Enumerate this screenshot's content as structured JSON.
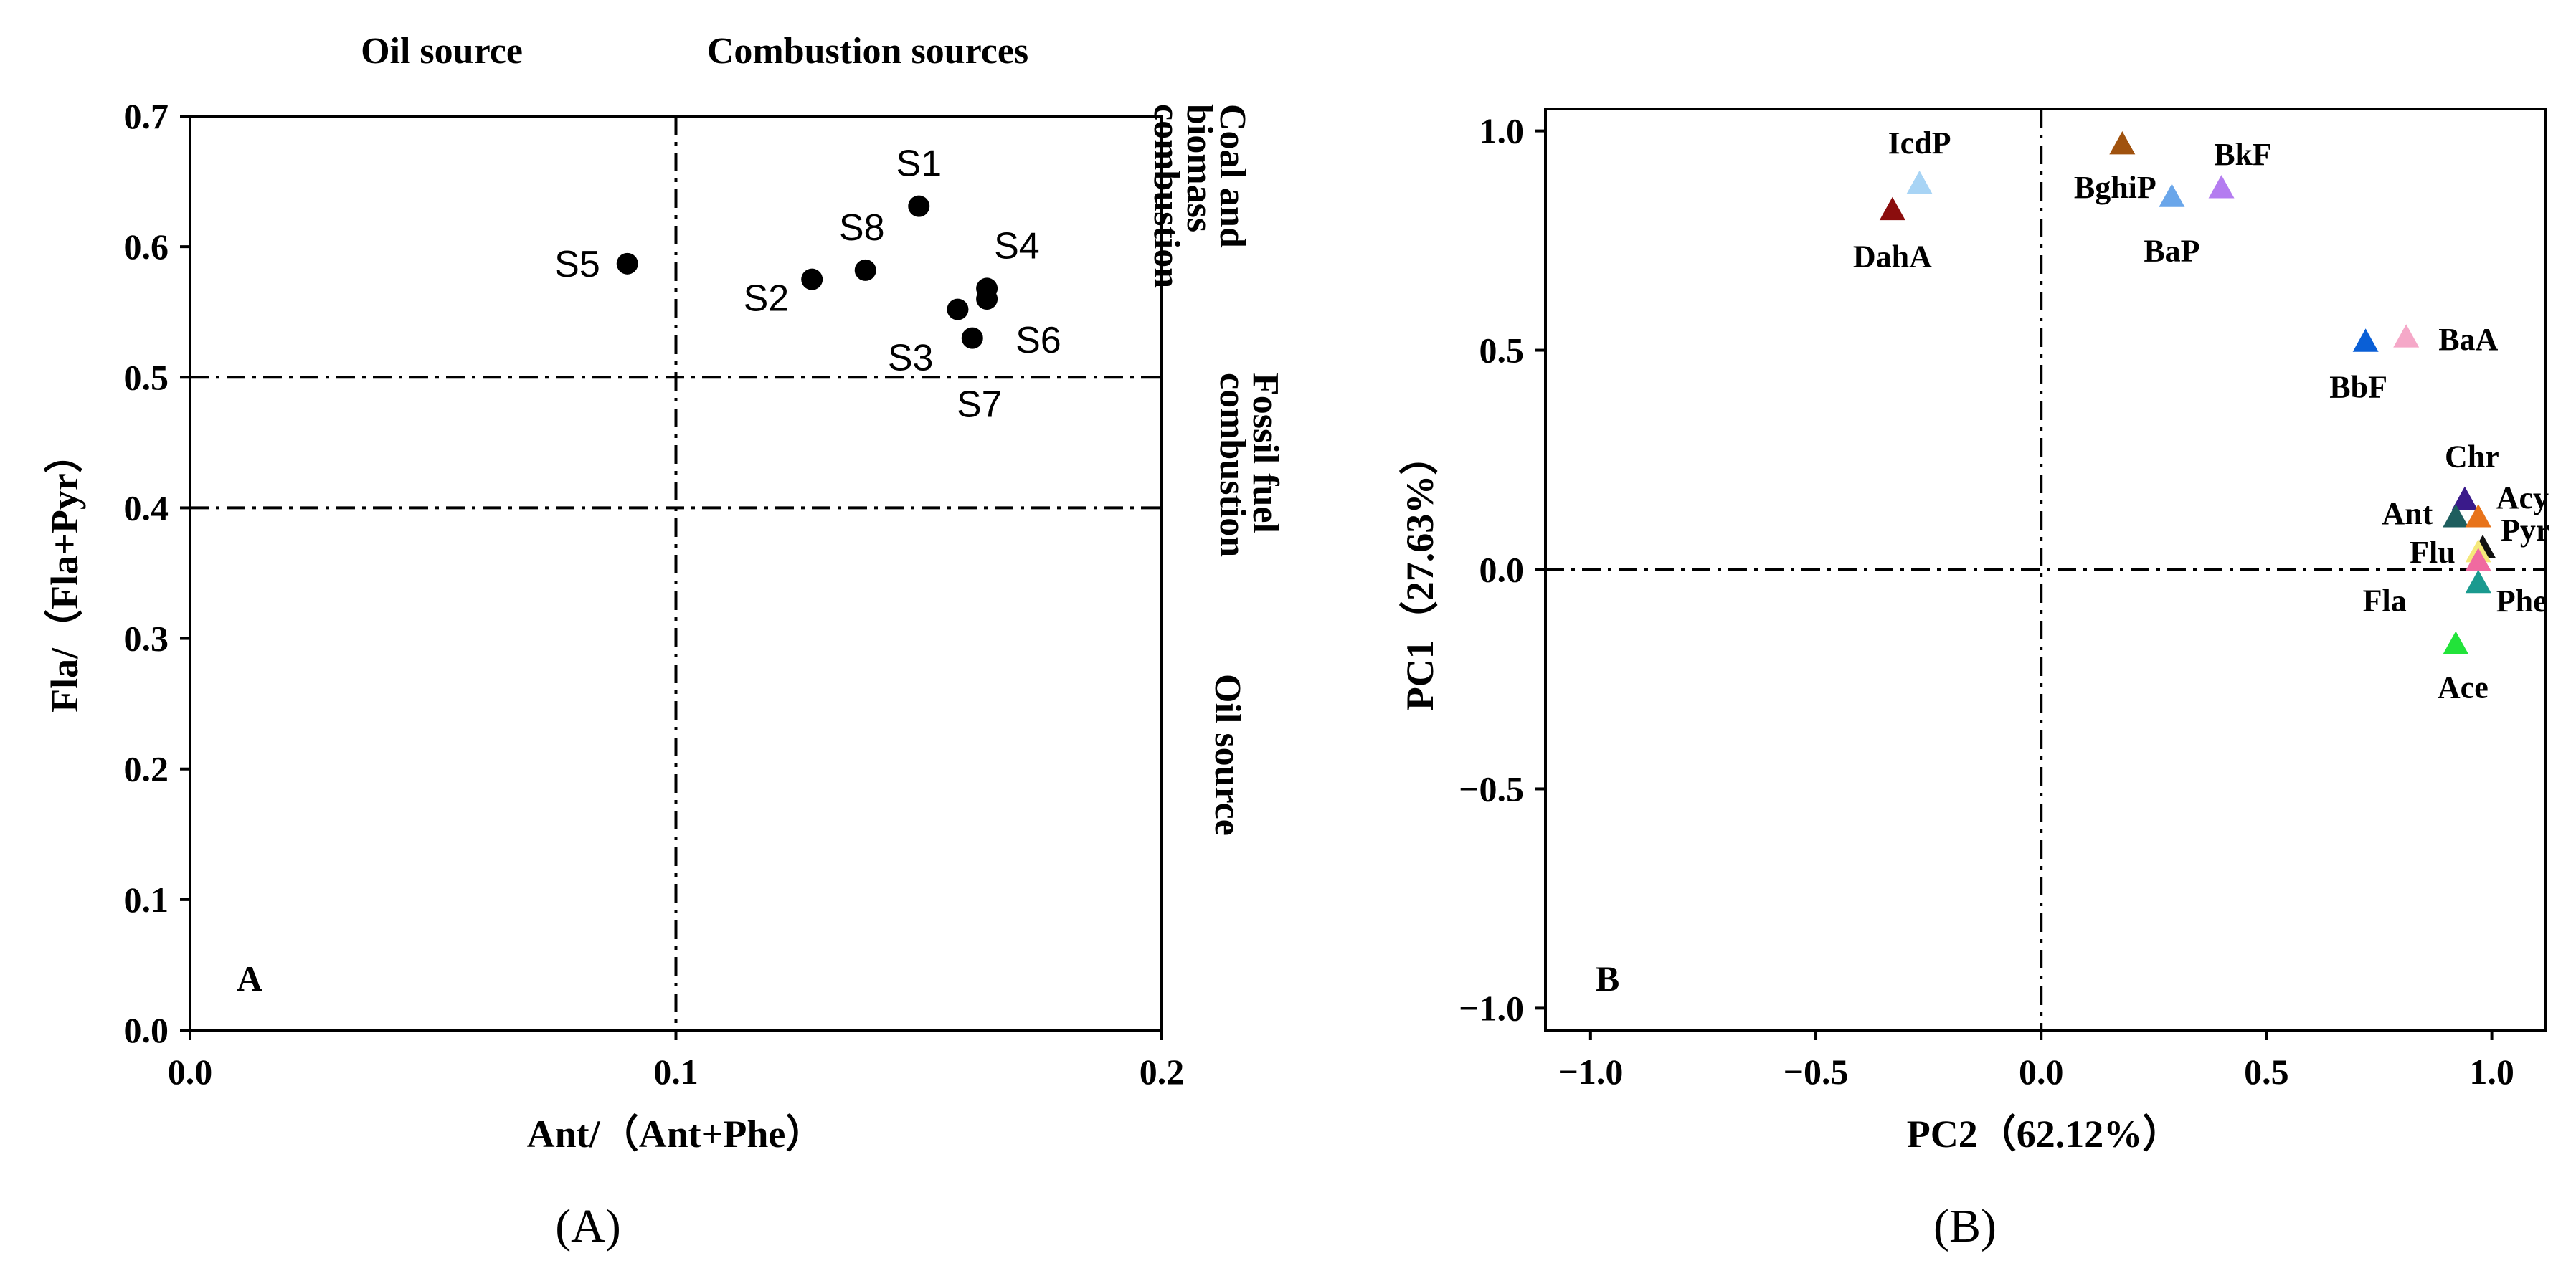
{
  "figure": {
    "caption_a": "(A)",
    "caption_b": "(B)"
  },
  "chart_data": [
    {
      "type": "scatter",
      "panel_label": "A",
      "xlabel": "Ant/（Ant+Phe）",
      "ylabel": "Fla/（Fla+Pyr）",
      "xlim": [
        0.0,
        0.2
      ],
      "ylim": [
        0.0,
        0.7
      ],
      "xticks": [
        "0.0",
        "0.1",
        "0.2"
      ],
      "yticks": [
        "0.0",
        "0.1",
        "0.2",
        "0.3",
        "0.4",
        "0.5",
        "0.6",
        "0.7"
      ],
      "top_labels": [
        "Oil source",
        "Combustion sources"
      ],
      "right_labels": [
        "Coal and biomass combustion",
        "Fossil fuel combustion",
        "Oil source"
      ],
      "reference_lines": {
        "x": [
          0.1
        ],
        "y": [
          0.4,
          0.5
        ]
      },
      "points": [
        {
          "label": "S1",
          "x": 0.15,
          "y": 0.631
        },
        {
          "label": "S2",
          "x": 0.128,
          "y": 0.575
        },
        {
          "label": "S3",
          "x": 0.158,
          "y": 0.552
        },
        {
          "label": "S4",
          "x": 0.164,
          "y": 0.568
        },
        {
          "label": "S5",
          "x": 0.09,
          "y": 0.587
        },
        {
          "label": "S6",
          "x": 0.164,
          "y": 0.56
        },
        {
          "label": "S7",
          "x": 0.161,
          "y": 0.53
        },
        {
          "label": "S8",
          "x": 0.139,
          "y": 0.582
        }
      ]
    },
    {
      "type": "scatter",
      "panel_label": "B",
      "xlabel": "PC2（62.12%）",
      "ylabel": "PC1（27.63%）",
      "xlim": [
        -1.1,
        1.12
      ],
      "ylim": [
        -1.05,
        1.05
      ],
      "xticks": [
        "−1.0",
        "−0.5",
        "0.0",
        "0.5",
        "1.0"
      ],
      "yticks": [
        "−1.0",
        "−0.5",
        "0.0",
        "0.5",
        "1.0"
      ],
      "reference_lines": {
        "x": [
          0.0
        ],
        "y": [
          0.0
        ]
      },
      "points": [
        {
          "label": "IcdP",
          "x": -0.27,
          "y": 0.88,
          "color": "#a8d4f5"
        },
        {
          "label": "DahA",
          "x": -0.33,
          "y": 0.82,
          "color": "#8b0d0d"
        },
        {
          "label": "BghiP",
          "x": 0.18,
          "y": 0.97,
          "color": "#a0520e"
        },
        {
          "label": "BaP",
          "x": 0.29,
          "y": 0.85,
          "color": "#6aa6ea"
        },
        {
          "label": "BkF",
          "x": 0.4,
          "y": 0.87,
          "color": "#b47cf0"
        },
        {
          "label": "BbF",
          "x": 0.72,
          "y": 0.52,
          "color": "#0a5fd6"
        },
        {
          "label": "BaA",
          "x": 0.81,
          "y": 0.53,
          "color": "#f5a8c8"
        },
        {
          "label": "Chr",
          "x": 0.94,
          "y": 0.16,
          "color": "#3a1a8a"
        },
        {
          "label": "Ant",
          "x": 0.92,
          "y": 0.12,
          "color": "#1e5e5e"
        },
        {
          "label": "Acy",
          "x": 0.97,
          "y": 0.12,
          "color": "#e8731a"
        },
        {
          "label": "Pyr",
          "x": 0.98,
          "y": 0.05,
          "color": "#111111"
        },
        {
          "label": "Flu",
          "x": 0.97,
          "y": 0.04,
          "color": "#f5e87a"
        },
        {
          "label": "Fla",
          "x": 0.97,
          "y": 0.02,
          "color": "#f06aa0"
        },
        {
          "label": "Phe",
          "x": 0.97,
          "y": -0.03,
          "color": "#1a9a8f"
        },
        {
          "label": "Ace",
          "x": 0.92,
          "y": -0.17,
          "color": "#22e33a"
        }
      ]
    }
  ]
}
